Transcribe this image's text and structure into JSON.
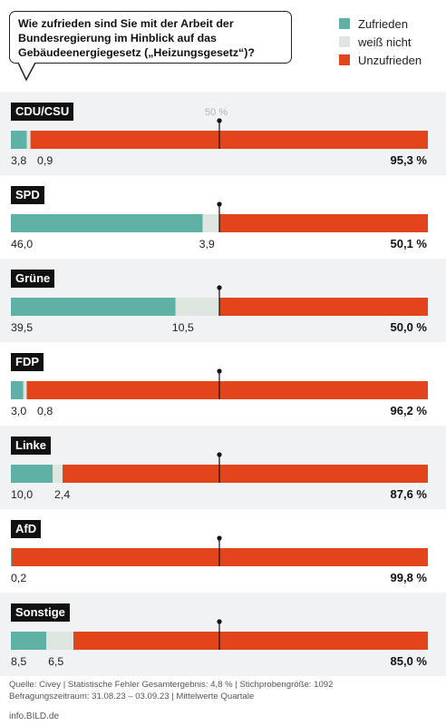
{
  "question": {
    "line1": "Wie zufrieden sind Sie mit der Arbeit der",
    "line2": "Bundesregierung im Hinblick auf das",
    "line3": "Gebäudeenergiegesetz („Heizungsgesetz“)?"
  },
  "legend": [
    {
      "label": "Zufrieden",
      "color": "#5fb0a5"
    },
    {
      "label": "weiß nicht",
      "color": "#dfe5df"
    },
    {
      "label": "Unzufrieden",
      "color": "#e2451b"
    }
  ],
  "reference_label": "50 %",
  "chart_data": {
    "type": "bar",
    "orientation": "horizontal",
    "stacked": true,
    "percent": true,
    "reference_line": 50,
    "categories": [
      "CDU/CSU",
      "SPD",
      "Grüne",
      "FDP",
      "Linke",
      "AfD",
      "Sonstige"
    ],
    "series": [
      {
        "name": "Zufrieden",
        "values": [
          3.8,
          46.0,
          39.5,
          3.0,
          10.0,
          0.2,
          8.5
        ]
      },
      {
        "name": "weiß nicht",
        "values": [
          0.9,
          3.9,
          10.5,
          0.8,
          2.4,
          0,
          6.5
        ]
      },
      {
        "name": "Unzufrieden",
        "values": [
          95.3,
          50.1,
          50.0,
          96.2,
          87.6,
          99.8,
          85.0
        ]
      }
    ],
    "printed_labels": [
      {
        "satisfied": "3,8",
        "unknown": "0,9",
        "unsatisfied": "95,3 %"
      },
      {
        "satisfied": "46,0",
        "unknown": "3,9",
        "unsatisfied": "50,1 %"
      },
      {
        "satisfied": "39,5",
        "unknown": "10,5",
        "unsatisfied": "50,0 %"
      },
      {
        "satisfied": "3,0",
        "unknown": "0,8",
        "unsatisfied": "96,2 %"
      },
      {
        "satisfied": "10,0",
        "unknown": "2,4",
        "unsatisfied": "87,6 %"
      },
      {
        "satisfied": "0,2",
        "unknown": "",
        "unsatisfied": "99,8 %"
      },
      {
        "satisfied": "8,5",
        "unknown": "6,5",
        "unsatisfied": "85,0 %"
      }
    ]
  },
  "footer": {
    "source": "Quelle: Civey | Statistische Fehler Gesamtergebnis: 4,8 % | Stichprobengröße: 1092",
    "period": "Befragungszeitraum: 31.08.23 – 03.09.23 | Mittelwerte Quartale",
    "site": "info.BILD.de"
  }
}
